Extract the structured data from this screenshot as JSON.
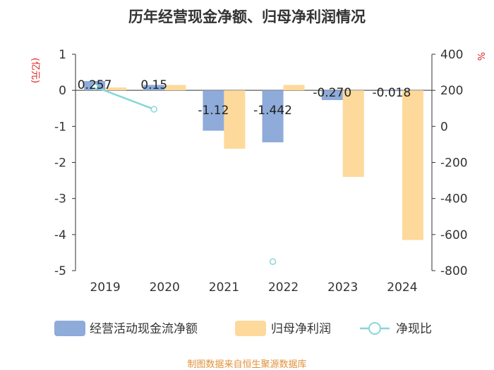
{
  "chart_data": {
    "type": "bar",
    "title": "历年经营现金净额、归母净利润情况",
    "left_axis_unit": "(亿元)",
    "right_axis_unit": "%",
    "categories": [
      "2019",
      "2020",
      "2021",
      "2022",
      "2023",
      "2024"
    ],
    "series": [
      {
        "name": "经营活动现金流净额",
        "type": "bar",
        "axis": "left",
        "color": "#8eabd9",
        "values": [
          0.257,
          0.15,
          -1.12,
          -1.442,
          -0.27,
          -0.018
        ],
        "data_labels": [
          "0.257",
          "0.15",
          "-1.12",
          "-1.442",
          "-0.270",
          "-0.018"
        ]
      },
      {
        "name": "归母净利润",
        "type": "bar",
        "axis": "left",
        "color": "#fdd99b",
        "values": [
          0.08,
          0.15,
          -1.62,
          0.15,
          -2.4,
          -4.15
        ]
      },
      {
        "name": "净现比",
        "type": "line",
        "axis": "right",
        "color": "#86d8d8",
        "values": [
          220,
          95,
          null,
          -750,
          null,
          null
        ]
      }
    ],
    "left_axis": {
      "min": -5,
      "max": 1,
      "ticks": [
        "1",
        "0",
        "-1",
        "-2",
        "-3",
        "-4",
        "-5"
      ]
    },
    "right_axis": {
      "min": -800,
      "max": 400,
      "ticks": [
        "400",
        "200",
        "0",
        "-200",
        "-400",
        "-600",
        "-800"
      ]
    },
    "legend_position": "bottom",
    "grid": false
  },
  "source": "制图数据来自恒生聚源数据库"
}
